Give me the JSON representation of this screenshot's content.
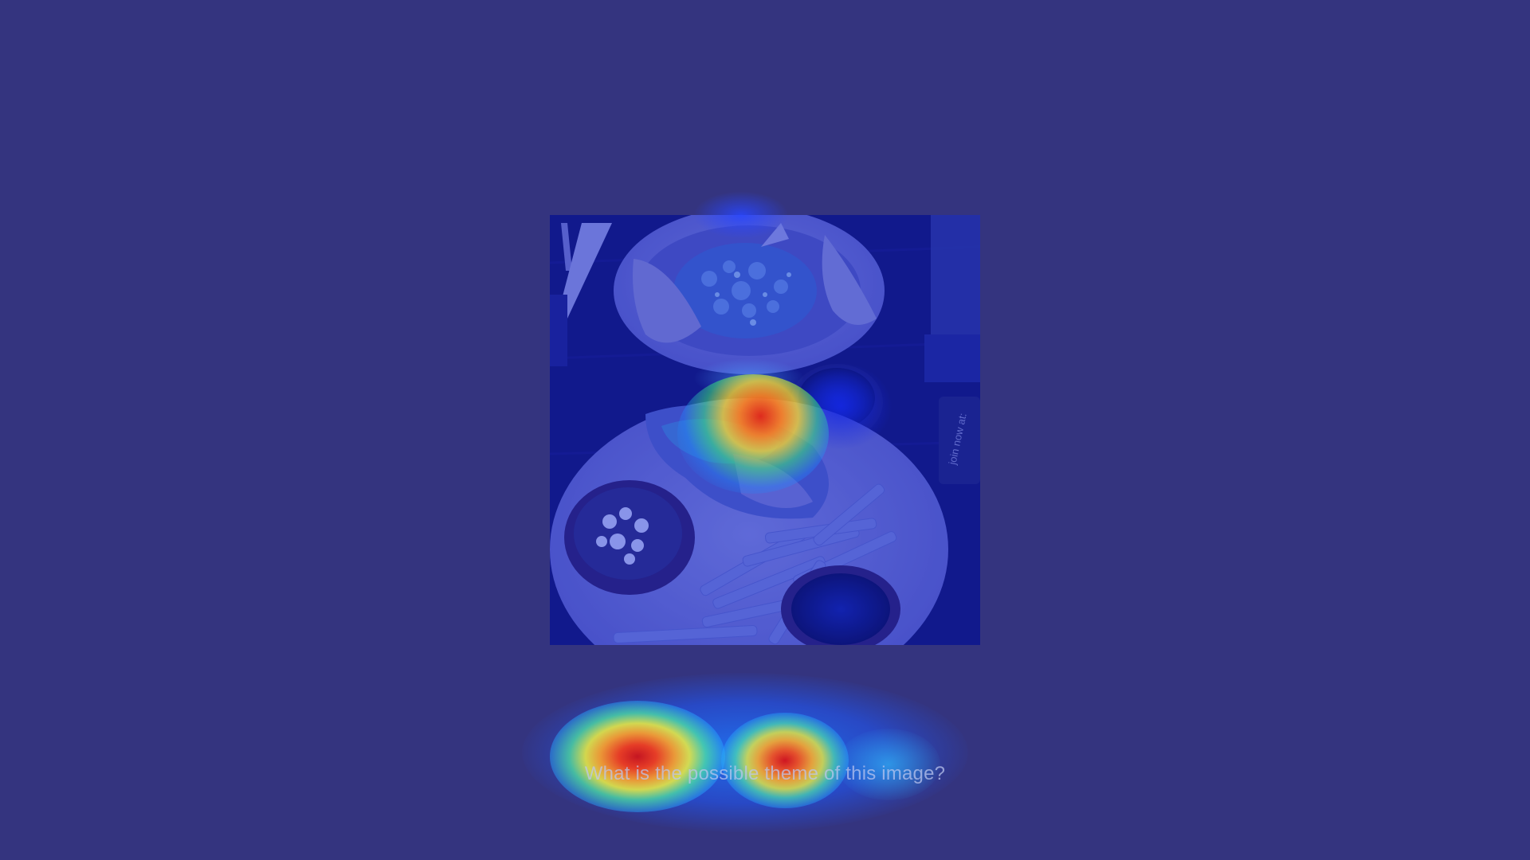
{
  "question": {
    "text": "What is the possible theme of this image?"
  },
  "image": {
    "subject_icon": "food-photo",
    "background_color": "#34347f"
  },
  "photo_text": {
    "sign": "join now at:"
  }
}
